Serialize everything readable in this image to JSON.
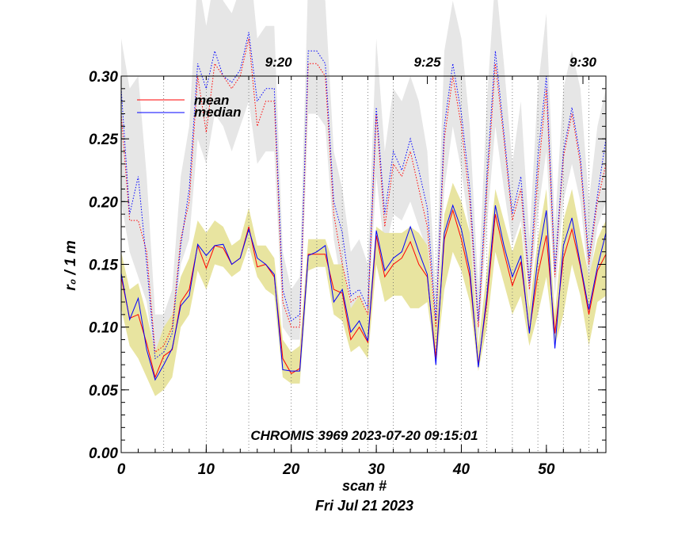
{
  "chart_data": {
    "type": "line",
    "title": "",
    "annotation": "CHROMIS 3969 2023-07-20 09:15:01",
    "xlabel": "scan #",
    "xlabel2": "Fri Jul 21 2023",
    "ylabel": "r₀ / 1 m",
    "xlim": [
      0,
      57
    ],
    "ylim": [
      0,
      0.3
    ],
    "x_ticks": [
      "0",
      "10",
      "20",
      "30",
      "40",
      "50"
    ],
    "y_ticks": [
      "0.00",
      "0.05",
      "0.10",
      "0.15",
      "0.20",
      "0.25",
      "0.30"
    ],
    "top_axis_labels": [
      {
        "scan": 18.5,
        "label": "9:20"
      },
      {
        "scan": 36.0,
        "label": "9:25"
      },
      {
        "scan": 54.3,
        "label": "9:30"
      }
    ],
    "time_gridlines": [
      0,
      5,
      10,
      15,
      20,
      23,
      26,
      29,
      32,
      37,
      40,
      43,
      46,
      49,
      52,
      55
    ],
    "legend": [
      {
        "name": "mean",
        "color": "#ff0000"
      },
      {
        "name": "median",
        "color": "#0000ff"
      }
    ],
    "colors": {
      "mean": "#ff0000",
      "median": "#0000ff",
      "band_low": "#e8e4a0",
      "band_high": "#e6e6e6"
    },
    "series": [
      {
        "name": "mean",
        "values": [
          0.14,
          0.107,
          0.11,
          0.087,
          0.06,
          0.077,
          0.082,
          0.12,
          0.13,
          0.165,
          0.147,
          0.165,
          0.163,
          0.15,
          0.155,
          0.18,
          0.148,
          0.15,
          0.14,
          0.075,
          0.063,
          0.067,
          0.158,
          0.158,
          0.158,
          0.13,
          0.127,
          0.09,
          0.1,
          0.088,
          0.173,
          0.14,
          0.15,
          0.155,
          0.168,
          0.15,
          0.14,
          0.075,
          0.17,
          0.193,
          0.17,
          0.14,
          0.07,
          0.12,
          0.19,
          0.16,
          0.133,
          0.152,
          0.097,
          0.142,
          0.173,
          0.095,
          0.155,
          0.178,
          0.148,
          0.11,
          0.145,
          0.158
        ]
      },
      {
        "name": "median",
        "values": [
          0.143,
          0.106,
          0.123,
          0.082,
          0.058,
          0.07,
          0.083,
          0.117,
          0.125,
          0.166,
          0.157,
          0.165,
          0.166,
          0.15,
          0.155,
          0.178,
          0.155,
          0.15,
          0.142,
          0.066,
          0.065,
          0.065,
          0.157,
          0.16,
          0.165,
          0.12,
          0.13,
          0.096,
          0.105,
          0.089,
          0.177,
          0.145,
          0.155,
          0.16,
          0.18,
          0.16,
          0.142,
          0.07,
          0.175,
          0.197,
          0.178,
          0.145,
          0.068,
          0.125,
          0.197,
          0.165,
          0.14,
          0.157,
          0.095,
          0.155,
          0.193,
          0.083,
          0.165,
          0.187,
          0.15,
          0.114,
          0.148,
          0.175
        ]
      },
      {
        "name": "mean_high",
        "values": [
          0.27,
          0.185,
          0.185,
          0.16,
          0.08,
          0.085,
          0.1,
          0.17,
          0.2,
          0.3,
          0.255,
          0.31,
          0.3,
          0.29,
          0.3,
          0.33,
          0.26,
          0.28,
          0.28,
          0.12,
          0.1,
          0.1,
          0.31,
          0.31,
          0.3,
          0.19,
          0.15,
          0.12,
          0.125,
          0.11,
          0.27,
          0.18,
          0.23,
          0.22,
          0.24,
          0.21,
          0.18,
          0.1,
          0.25,
          0.3,
          0.26,
          0.2,
          0.1,
          0.21,
          0.31,
          0.25,
          0.185,
          0.21,
          0.13,
          0.22,
          0.29,
          0.14,
          0.235,
          0.27,
          0.23,
          0.15,
          0.2,
          0.23
        ]
      },
      {
        "name": "median_high",
        "values": [
          0.29,
          0.19,
          0.22,
          0.15,
          0.075,
          0.08,
          0.095,
          0.165,
          0.21,
          0.31,
          0.29,
          0.32,
          0.3,
          0.295,
          0.305,
          0.335,
          0.28,
          0.29,
          0.29,
          0.13,
          0.105,
          0.11,
          0.32,
          0.32,
          0.31,
          0.2,
          0.175,
          0.125,
          0.13,
          0.115,
          0.275,
          0.19,
          0.24,
          0.225,
          0.25,
          0.225,
          0.195,
          0.105,
          0.26,
          0.31,
          0.27,
          0.21,
          0.105,
          0.22,
          0.32,
          0.255,
          0.19,
          0.22,
          0.135,
          0.235,
          0.3,
          0.145,
          0.24,
          0.275,
          0.235,
          0.155,
          0.205,
          0.25
        ]
      }
    ],
    "bands": [
      {
        "name": "mean_band",
        "lower": [
          0.115,
          0.085,
          0.075,
          0.06,
          0.045,
          0.05,
          0.06,
          0.1,
          0.11,
          0.145,
          0.13,
          0.15,
          0.148,
          0.14,
          0.145,
          0.165,
          0.14,
          0.13,
          0.125,
          0.06,
          0.055,
          0.055,
          0.145,
          0.148,
          0.148,
          0.11,
          0.105,
          0.08,
          0.085,
          0.075,
          0.15,
          0.12,
          0.125,
          0.125,
          0.115,
          0.115,
          0.12,
          0.07,
          0.13,
          0.16,
          0.145,
          0.12,
          0.065,
          0.1,
          0.16,
          0.135,
          0.11,
          0.125,
          0.085,
          0.11,
          0.14,
          0.085,
          0.11,
          0.15,
          0.125,
          0.085,
          0.12,
          0.125
        ],
        "upper": [
          0.16,
          0.13,
          0.135,
          0.11,
          0.08,
          0.1,
          0.11,
          0.14,
          0.155,
          0.185,
          0.175,
          0.185,
          0.18,
          0.165,
          0.17,
          0.195,
          0.165,
          0.165,
          0.155,
          0.09,
          0.08,
          0.085,
          0.17,
          0.17,
          0.17,
          0.15,
          0.15,
          0.115,
          0.125,
          0.11,
          0.18,
          0.175,
          0.175,
          0.175,
          0.18,
          0.175,
          0.165,
          0.1,
          0.19,
          0.215,
          0.2,
          0.175,
          0.085,
          0.145,
          0.21,
          0.185,
          0.16,
          0.18,
          0.115,
          0.17,
          0.21,
          0.11,
          0.185,
          0.21,
          0.175,
          0.14,
          0.17,
          0.185
        ]
      },
      {
        "name": "high_band",
        "lower": [
          0.2,
          0.16,
          0.14,
          0.12,
          0.07,
          0.075,
          0.085,
          0.15,
          0.17,
          0.25,
          0.23,
          0.27,
          0.26,
          0.24,
          0.26,
          0.28,
          0.23,
          0.24,
          0.24,
          0.1,
          0.09,
          0.09,
          0.27,
          0.27,
          0.26,
          0.17,
          0.13,
          0.105,
          0.11,
          0.1,
          0.22,
          0.16,
          0.19,
          0.185,
          0.2,
          0.18,
          0.16,
          0.09,
          0.21,
          0.26,
          0.225,
          0.175,
          0.09,
          0.18,
          0.26,
          0.21,
          0.165,
          0.185,
          0.12,
          0.19,
          0.24,
          0.125,
          0.2,
          0.23,
          0.2,
          0.135,
          0.18,
          0.2
        ],
        "upper": [
          0.33,
          0.29,
          0.3,
          0.22,
          0.11,
          0.11,
          0.13,
          0.22,
          0.26,
          0.38,
          0.34,
          0.38,
          0.36,
          0.35,
          0.37,
          0.4,
          0.33,
          0.34,
          0.34,
          0.16,
          0.13,
          0.14,
          0.38,
          0.38,
          0.36,
          0.24,
          0.21,
          0.16,
          0.17,
          0.15,
          0.33,
          0.24,
          0.29,
          0.28,
          0.3,
          0.28,
          0.24,
          0.13,
          0.32,
          0.36,
          0.33,
          0.26,
          0.13,
          0.28,
          0.38,
          0.31,
          0.23,
          0.28,
          0.17,
          0.29,
          0.35,
          0.18,
          0.29,
          0.32,
          0.29,
          0.2,
          0.26,
          0.29
        ]
      }
    ]
  }
}
